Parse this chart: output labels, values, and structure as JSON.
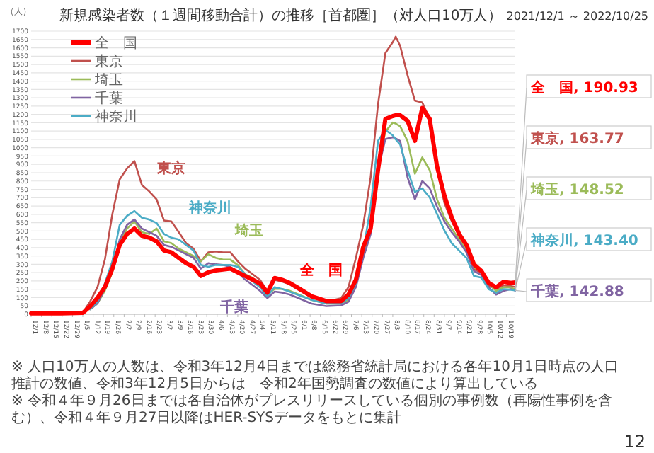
{
  "chart_data": {
    "type": "line",
    "title": "新規感染者数（１週間移動合計）の推移［首都圏］（対人口10万人）",
    "subtitle": "2021/12/1 ～ 2022/10/25",
    "ylabel": "（人）",
    "x": [
      "2021-12-01",
      "2021-12-21",
      "2022-01-05",
      "2022-01-10",
      "2022-01-15",
      "2022-01-20",
      "2022-01-25",
      "2022-01-30",
      "2022-02-04",
      "2022-02-09",
      "2022-02-14",
      "2022-02-19",
      "2022-02-24",
      "2022-03-01",
      "2022-03-06",
      "2022-03-11",
      "2022-03-16",
      "2022-03-21",
      "2022-03-26",
      "2022-03-31",
      "2022-04-05",
      "2022-04-10",
      "2022-04-15",
      "2022-04-20",
      "2022-04-25",
      "2022-04-30",
      "2022-05-05",
      "2022-05-10",
      "2022-05-15",
      "2022-05-20",
      "2022-05-25",
      "2022-05-30",
      "2022-06-09",
      "2022-06-19",
      "2022-06-29",
      "2022-07-04",
      "2022-07-09",
      "2022-07-14",
      "2022-07-19",
      "2022-07-24",
      "2022-07-29",
      "2022-08-03",
      "2022-08-05",
      "2022-08-08",
      "2022-08-13",
      "2022-08-18",
      "2022-08-23",
      "2022-08-28",
      "2022-09-02",
      "2022-09-07",
      "2022-09-12",
      "2022-09-17",
      "2022-09-22",
      "2022-09-27",
      "2022-10-02",
      "2022-10-07",
      "2022-10-12",
      "2022-10-17",
      "2022-10-22",
      "2022-10-25"
    ],
    "series": [
      {
        "name": "全　国",
        "color": "#ff0000",
        "values": [
          5,
          5,
          8,
          48,
          99,
          164,
          274,
          416,
          482,
          515,
          471,
          460,
          438,
          383,
          372,
          339,
          307,
          285,
          230,
          252,
          263,
          269,
          274,
          252,
          230,
          208,
          185,
          130,
          218,
          207,
          189,
          163,
          108,
          79,
          79,
          119,
          207,
          404,
          514,
          866,
          1173,
          1190,
          1195,
          1195,
          1162,
          1041,
          1239,
          1173,
          887,
          712,
          580,
          481,
          415,
          300,
          260,
          188,
          162,
          195,
          188,
          190.93
        ]
      },
      {
        "name": "東京",
        "color": "#c0504d",
        "values": [
          5,
          5,
          10,
          77,
          164,
          330,
          600,
          810,
          876,
          920,
          777,
          738,
          690,
          563,
          558,
          493,
          427,
          394,
          318,
          372,
          377,
          372,
          372,
          318,
          274,
          241,
          207,
          141,
          207,
          196,
          180,
          152,
          101,
          75,
          97,
          163,
          338,
          536,
          822,
          1261,
          1568,
          1634,
          1667,
          1612,
          1436,
          1283,
          1272,
          1173,
          866,
          668,
          558,
          470,
          404,
          270,
          250,
          173,
          151,
          173,
          169,
          163.77
        ]
      },
      {
        "name": "埼玉",
        "color": "#9bbb59",
        "values": [
          null,
          null,
          null,
          30,
          66,
          142,
          252,
          427,
          515,
          558,
          493,
          482,
          515,
          438,
          427,
          394,
          372,
          350,
          318,
          361,
          339,
          328,
          328,
          296,
          241,
          219,
          163,
          119,
          152,
          152,
          141,
          123,
          86,
          64,
          64,
          86,
          185,
          360,
          503,
          909,
          1096,
          1151,
          1145,
          1129,
          1041,
          844,
          942,
          866,
          690,
          580,
          514,
          448,
          382,
          280,
          260,
          184,
          140,
          162,
          162,
          148.52
        ]
      },
      {
        "name": "千葉",
        "color": "#8064a2",
        "values": [
          null,
          null,
          null,
          30,
          66,
          153,
          263,
          449,
          537,
          569,
          515,
          493,
          471,
          416,
          405,
          383,
          361,
          339,
          274,
          307,
          300,
          296,
          285,
          252,
          208,
          175,
          141,
          97,
          136,
          130,
          119,
          101,
          64,
          49,
          53,
          75,
          163,
          338,
          481,
          866,
          1052,
          1063,
          1055,
          1041,
          822,
          690,
          800,
          756,
          646,
          558,
          492,
          437,
          371,
          260,
          235,
          162,
          118,
          140,
          151,
          142.88
        ]
      },
      {
        "name": "神奈川",
        "color": "#4bacc6",
        "values": [
          null,
          null,
          null,
          30,
          77,
          186,
          318,
          537,
          591,
          620,
          580,
          569,
          548,
          482,
          460,
          449,
          416,
          383,
          296,
          285,
          296,
          296,
          296,
          285,
          241,
          197,
          163,
          108,
          163,
          152,
          136,
          119,
          86,
          64,
          64,
          97,
          185,
          382,
          646,
          1041,
          1107,
          1074,
          1050,
          1019,
          866,
          734,
          756,
          701,
          602,
          503,
          426,
          382,
          338,
          230,
          220,
          151,
          129,
          151,
          147,
          143.4
        ]
      }
    ],
    "xlim": [
      "2021-12-01",
      "2022-10-25"
    ],
    "xticks": [
      {
        "value": "2021-12-01",
        "label": "12/1"
      },
      {
        "value": "2021-12-08",
        "label": "12/8"
      },
      {
        "value": "2021-12-15",
        "label": "12/15"
      },
      {
        "value": "2021-12-22",
        "label": "12/22"
      },
      {
        "value": "2021-12-29",
        "label": "12/29"
      },
      {
        "value": "2022-01-05",
        "label": "1/5"
      },
      {
        "value": "2022-01-12",
        "label": "1/12"
      },
      {
        "value": "2022-01-19",
        "label": "1/19"
      },
      {
        "value": "2022-01-26",
        "label": "1/26"
      },
      {
        "value": "2022-02-02",
        "label": "2/2"
      },
      {
        "value": "2022-02-09",
        "label": "2/9"
      },
      {
        "value": "2022-02-16",
        "label": "2/16"
      },
      {
        "value": "2022-02-23",
        "label": "2/23"
      },
      {
        "value": "2022-03-02",
        "label": "3/2"
      },
      {
        "value": "2022-03-09",
        "label": "3/9"
      },
      {
        "value": "2022-03-16",
        "label": "3/16"
      },
      {
        "value": "2022-03-23",
        "label": "3/23"
      },
      {
        "value": "2022-03-30",
        "label": "3/30"
      },
      {
        "value": "2022-04-06",
        "label": "4/6"
      },
      {
        "value": "2022-04-13",
        "label": "4/13"
      },
      {
        "value": "2022-04-20",
        "label": "4/20"
      },
      {
        "value": "2022-04-27",
        "label": "4/27"
      },
      {
        "value": "2022-05-04",
        "label": "5/4"
      },
      {
        "value": "2022-05-11",
        "label": "5/11"
      },
      {
        "value": "2022-05-18",
        "label": "5/18"
      },
      {
        "value": "2022-05-25",
        "label": "5/25"
      },
      {
        "value": "2022-06-01",
        "label": "6/1"
      },
      {
        "value": "2022-06-08",
        "label": "6/8"
      },
      {
        "value": "2022-06-15",
        "label": "6/15"
      },
      {
        "value": "2022-06-22",
        "label": "6/22"
      },
      {
        "value": "2022-06-29",
        "label": "6/29"
      },
      {
        "value": "2022-07-06",
        "label": "7/6"
      },
      {
        "value": "2022-07-13",
        "label": "7/13"
      },
      {
        "value": "2022-07-20",
        "label": "7/20"
      },
      {
        "value": "2022-07-27",
        "label": "7/27"
      },
      {
        "value": "2022-08-03",
        "label": "8/3"
      },
      {
        "value": "2022-08-10",
        "label": "8/10"
      },
      {
        "value": "2022-08-17",
        "label": "8/17"
      },
      {
        "value": "2022-08-24",
        "label": "8/24"
      },
      {
        "value": "2022-08-31",
        "label": "8/31"
      },
      {
        "value": "2022-09-07",
        "label": "9/7"
      },
      {
        "value": "2022-09-14",
        "label": "9/14"
      },
      {
        "value": "2022-09-21",
        "label": "9/21"
      },
      {
        "value": "2022-09-28",
        "label": "9/28"
      },
      {
        "value": "2022-10-05",
        "label": "10/5"
      },
      {
        "value": "2022-10-12",
        "label": "10/12"
      },
      {
        "value": "2022-10-19",
        "label": "10/19"
      }
    ],
    "ylim": [
      0,
      1700
    ],
    "yticks": [
      0,
      50,
      100,
      150,
      200,
      250,
      300,
      350,
      400,
      450,
      500,
      550,
      600,
      650,
      700,
      750,
      800,
      850,
      900,
      950,
      1000,
      1050,
      1100,
      1150,
      1200,
      1250,
      1300,
      1350,
      1400,
      1450,
      1500,
      1550,
      1600,
      1650,
      1700
    ],
    "grid": "y",
    "legend": "top left",
    "marker": "none",
    "line_style": "solid",
    "annotations": [
      {
        "text": "全　国, 190.93",
        "x": "2022-10-25",
        "y": 190.93
      },
      {
        "text": "東京, 163.77",
        "x": "2022-10-25",
        "y": 163.77
      },
      {
        "text": "埼玉, 148.52",
        "x": "2022-10-25",
        "y": 148.52
      },
      {
        "text": "神奈川, 143.40",
        "x": "2022-10-25",
        "y": 143.4
      },
      {
        "text": "千葉, 142.88",
        "x": "2022-10-25",
        "y": 142.88
      },
      "※ 人口10万人の人数は、令和3年12月4日までは総務省統計局における各年10月1日時点の人口推計の数値、令和3年12月5日からは　令和2年国勢調査の数値により算出している",
      "※ 令和４年９月26日までは各自治体がプレスリリースしている個別の事例数（再陽性事例を含む）、令和４年９月27日以降はHER-SYSデータをもとに集計",
      "12"
    ]
  }
}
